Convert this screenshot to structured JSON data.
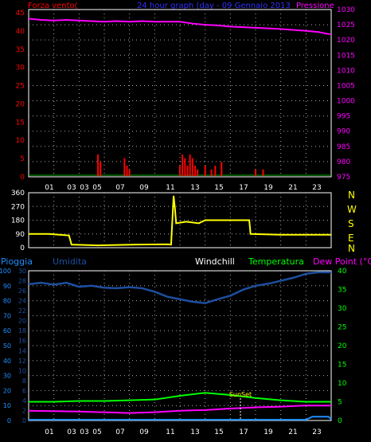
{
  "colors": {
    "wind": "#ff0000",
    "pressure": "#ff00ff",
    "direction": "#ffff00",
    "humidity": "#1e4fa0",
    "temperature": "#00ff00",
    "dewpoint": "#ff00ff",
    "rain": "#1f8fff",
    "title": "#3030ff",
    "windchill": "#ffffff",
    "axis_gray": "#c0c0c0"
  },
  "top_panel": {
    "left_label": "Forza vento(",
    "title": "24 hour graph (day - 09 Gennaio 2013",
    "right_label": "Pressione",
    "left_ticks": [
      "45",
      "40",
      "35",
      "30",
      "25",
      "20",
      "15",
      "10",
      "5",
      "0"
    ],
    "right_ticks": [
      "1030",
      "1025",
      "1020",
      "1015",
      "1010",
      "1005",
      "1000",
      "995",
      "990",
      "985",
      "980",
      "975"
    ]
  },
  "middle_panel": {
    "left_ticks": [
      "360",
      "270",
      "180",
      "90",
      "0"
    ],
    "right_letters": [
      "N",
      "W",
      "S",
      "E",
      "N"
    ]
  },
  "bottom_panel": {
    "label_rain": "Pioggia",
    "label_humidity": "Umidita",
    "label_windchill": "Windchill",
    "label_temperature": "Temperatura",
    "label_dewpoint": "Dew Point (°C)",
    "rain_ticks": [
      "100",
      "90",
      "80",
      "70",
      "60",
      "50",
      "40",
      "30",
      "20",
      "10",
      "0"
    ],
    "humidity_ticks": [
      "30",
      "28",
      "26",
      "24",
      "22",
      "20",
      "18",
      "16",
      "14",
      "12",
      "10",
      "8",
      "6",
      "4",
      "2",
      "0"
    ],
    "temp_ticks": [
      "40",
      "35",
      "30",
      "25",
      "20",
      "15",
      "10",
      "5",
      "0"
    ],
    "sunset_label": "SunSet"
  },
  "x_ticks": [
    "01",
    "03",
    "03",
    "05",
    "07",
    "09",
    "11",
    "13",
    "15",
    "17",
    "19",
    "21",
    "23"
  ],
  "chart_data": [
    {
      "type": "line",
      "title": "24 hour graph (day - 09 Gennaio 2013",
      "x_unit": "hour",
      "xlim": [
        0,
        24
      ],
      "series": [
        {
          "name": "Pressione",
          "axis": "right",
          "ylim": [
            975,
            1030
          ],
          "x": [
            0,
            1,
            2,
            3,
            4,
            5,
            6,
            7,
            8,
            9,
            10,
            11,
            12,
            13,
            14,
            15,
            16,
            17,
            18,
            19,
            20,
            21,
            22,
            23,
            24
          ],
          "values": [
            1027,
            1026.6,
            1026.4,
            1026.6,
            1026.4,
            1026.2,
            1026.0,
            1026.2,
            1026.0,
            1026.2,
            1026.0,
            1026.0,
            1026.0,
            1025.4,
            1025.0,
            1024.8,
            1024.4,
            1024.2,
            1024.0,
            1023.8,
            1023.6,
            1023.3,
            1023.0,
            1022.6,
            1021.8
          ]
        },
        {
          "name": "Forza vento",
          "axis": "left",
          "ylim": [
            0,
            45
          ],
          "x": [
            5.5,
            5.7,
            7.6,
            7.8,
            8.0,
            12.0,
            12.2,
            12.4,
            12.6,
            12.8,
            13.0,
            13.2,
            13.4,
            14.0,
            14.5,
            14.8,
            15.3,
            18.0,
            18.6
          ],
          "values": [
            6,
            4,
            5,
            3,
            2,
            3,
            6,
            5,
            3,
            6,
            5,
            3,
            2,
            3,
            2,
            3,
            4,
            2,
            2
          ]
        }
      ]
    },
    {
      "type": "line",
      "x_unit": "hour",
      "xlim": [
        0,
        24
      ],
      "ylim": [
        0,
        360
      ],
      "series": [
        {
          "name": "wind direction",
          "x": [
            0,
            1.6,
            3.2,
            3.4,
            5.5,
            8.5,
            11.0,
            11.3,
            11.5,
            11.6,
            11.7,
            12.5,
            13.5,
            14.0,
            17.5,
            17.6,
            20.0,
            24.0
          ],
          "values": [
            90,
            90,
            80,
            20,
            15,
            20,
            22,
            20,
            340,
            260,
            160,
            170,
            160,
            180,
            180,
            90,
            85,
            85
          ]
        }
      ]
    },
    {
      "type": "line",
      "x_unit": "hour",
      "xlim": [
        0,
        24
      ],
      "series": [
        {
          "name": "Umidita",
          "axis": "left-inner",
          "ylim": [
            0,
            30
          ],
          "x": [
            0,
            1,
            2,
            3,
            4,
            5,
            6,
            7,
            8,
            9,
            10,
            11,
            12,
            13,
            14,
            15,
            16,
            17,
            18,
            19,
            20,
            21,
            22,
            23,
            24
          ],
          "values": [
            27.3,
            27.6,
            27.2,
            27.6,
            26.8,
            27.0,
            26.6,
            26.5,
            26.7,
            26.5,
            25.8,
            24.8,
            24.3,
            23.8,
            23.5,
            24.3,
            25.0,
            26.2,
            27.0,
            27.4,
            28.0,
            28.6,
            29.4,
            29.7,
            29.7
          ]
        },
        {
          "name": "Temperatura",
          "axis": "right",
          "ylim": [
            0,
            40
          ],
          "x": [
            0,
            2,
            4,
            6,
            8,
            10,
            12,
            14,
            16,
            18,
            20,
            22,
            24
          ],
          "values": [
            5.0,
            5.0,
            5.2,
            5.2,
            5.4,
            5.6,
            6.6,
            7.4,
            6.8,
            6.0,
            5.4,
            5.0,
            5.0
          ]
        },
        {
          "name": "Dew Point (°C)",
          "axis": "right",
          "ylim": [
            0,
            40
          ],
          "x": [
            0,
            2,
            4,
            6,
            8,
            10,
            12,
            14,
            16,
            18,
            20,
            22,
            24
          ],
          "values": [
            2.6,
            2.5,
            2.4,
            2.2,
            2.0,
            2.2,
            2.6,
            2.8,
            3.2,
            3.5,
            3.7,
            4.0,
            4.0
          ]
        },
        {
          "name": "Pioggia",
          "axis": "left",
          "ylim": [
            0,
            100
          ],
          "x": [
            0,
            22.0,
            22.5,
            23.8,
            24.0
          ],
          "values": [
            0,
            0,
            2,
            2,
            0
          ]
        }
      ],
      "annotations": [
        {
          "text": "SunSet",
          "x": 16.8
        }
      ]
    }
  ]
}
